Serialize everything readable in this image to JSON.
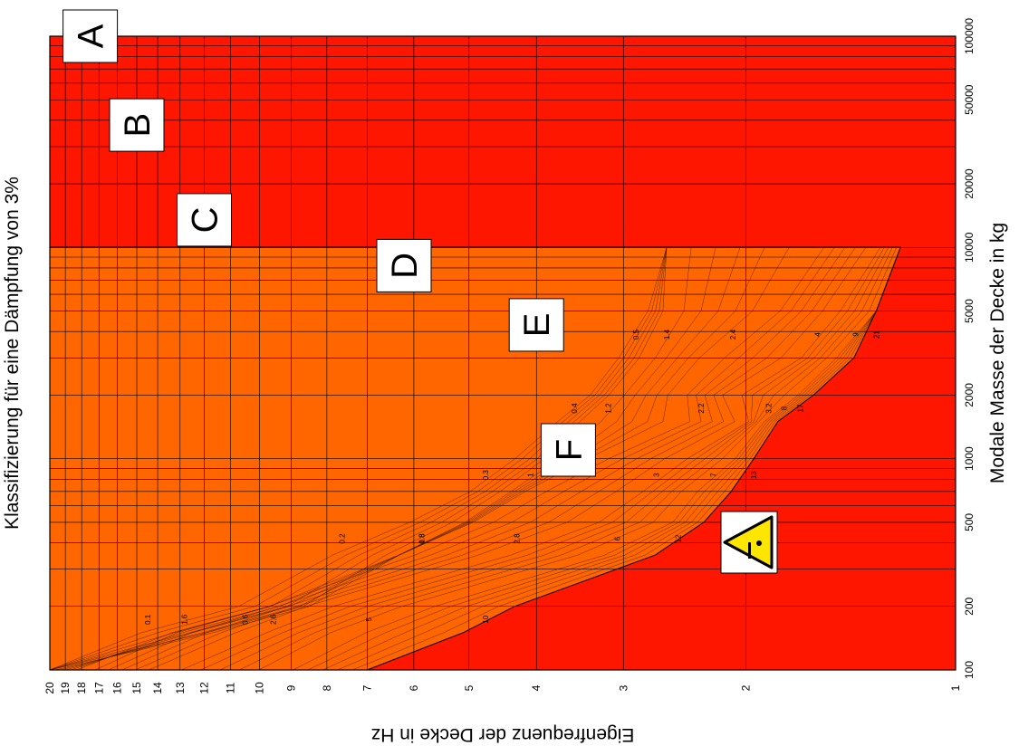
{
  "chart_data": {
    "type": "heatmap",
    "title": "Klassifizierung für eine Dämpfung von 3%",
    "xlabel": "Modale Masse der Decke in kg",
    "ylabel": "Eigenfrequenz der Decke in Hz",
    "x_scale": "log",
    "y_scale": "log",
    "xlim": [
      100,
      100000
    ],
    "ylim": [
      1,
      20
    ],
    "x_ticks": [
      "100",
      "200",
      "500",
      "1000",
      "2000",
      "5000",
      "10000",
      "20000",
      "50000",
      "100000"
    ],
    "y_ticks": [
      "1",
      "2",
      "3",
      "4",
      "5",
      "6",
      "7",
      "8",
      "9",
      "10",
      "11",
      "12",
      "13",
      "14",
      "15",
      "16",
      "17",
      "18",
      "19",
      "20"
    ],
    "grid": true,
    "classes": [
      {
        "label": "A",
        "color": "#ffffff"
      },
      {
        "label": "B",
        "color": "#0a1c80"
      },
      {
        "label": "C",
        "color": "#0f3ddc"
      },
      {
        "label": "D",
        "color": "#72ee1e"
      },
      {
        "label": "E",
        "color": "#fff000"
      },
      {
        "label": "F",
        "color": "#ff6600"
      },
      {
        "label": "",
        "color": "#ff1600"
      }
    ],
    "class_labels": [
      {
        "label": "A",
        "mass": 100000,
        "freq": 17.5
      },
      {
        "label": "B",
        "mass": 38000,
        "freq": 15.0
      },
      {
        "label": "C",
        "mass": 13500,
        "freq": 12.0
      },
      {
        "label": "D",
        "mass": 8200,
        "freq": 6.2
      },
      {
        "label": "E",
        "mass": 4300,
        "freq": 4.0
      },
      {
        "label": "F",
        "mass": 1100,
        "freq": 3.6
      }
    ],
    "contour_labels": [
      "0.1",
      "0.2",
      "0.3",
      "0.4",
      "0.5",
      "0.6",
      "0.8",
      "1",
      "1.2",
      "1.4",
      "1.6",
      "1.8",
      "2",
      "2.2",
      "2.4",
      "2.6",
      "2.8",
      "3",
      "3.2",
      "4",
      "5",
      "6",
      "7",
      "8",
      "9",
      "10",
      "12",
      "13",
      "17",
      "21",
      "25",
      "29",
      "33",
      "37",
      "41",
      "45",
      "49",
      "56",
      "76",
      "96",
      "116",
      "136",
      "156",
      "176",
      "236",
      "256",
      "276"
    ],
    "series": [
      {
        "class": "A",
        "values": [
          20,
          15.6,
          11.3,
          8.2,
          6.3,
          5.1,
          4.4,
          3.8,
          3.4,
          3.1,
          2.8,
          2.6
        ]
      },
      {
        "class": "B",
        "values": [
          20,
          11.3,
          8.2,
          6.3,
          5.1,
          4.4,
          3.8,
          3.4,
          3.1,
          2.8,
          2.6,
          2.6
        ]
      },
      {
        "class": "C",
        "values": [
          18,
          13.8,
          10.0,
          6.3,
          4.9,
          4.1,
          3.3,
          2.5,
          2.5,
          2.25,
          1.85,
          1.6
        ]
      },
      {
        "class": "D",
        "values": [
          13.8,
          10.3,
          8.3,
          4.6,
          3.4,
          2.9,
          2.5,
          2.0,
          2.1,
          1.7,
          1.5,
          1.3
        ]
      },
      {
        "class": "E",
        "values": [
          9.4,
          7.5,
          5.9,
          3.3,
          2.6,
          2.4,
          2.1,
          1.9,
          1.7,
          1.5,
          1.3,
          1.2
        ]
      },
      {
        "class": "F",
        "values": [
          7.0,
          5.1,
          4.3,
          2.7,
          2.3,
          2.1,
          1.95,
          1.8,
          1.6,
          1.4,
          1.3,
          1.2
        ]
      }
    ],
    "series_x": [
      100,
      150,
      200,
      350,
      500,
      700,
      1000,
      1500,
      2000,
      3000,
      5000,
      10000
    ]
  }
}
